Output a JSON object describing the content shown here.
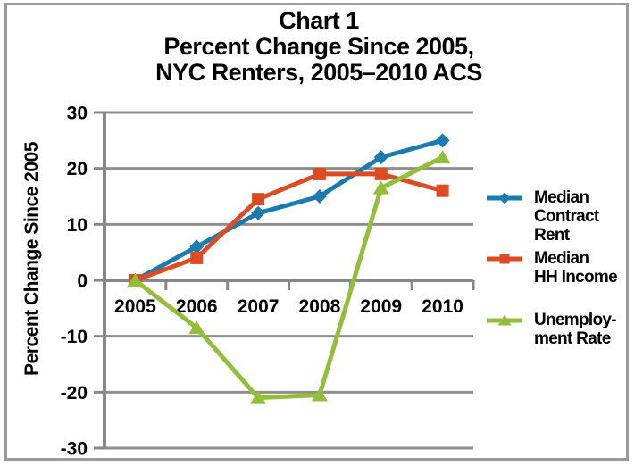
{
  "title": {
    "line1": "Chart 1",
    "line2": "Percent Change Since 2005,",
    "line3": "NYC Renters, 2005–2010 ACS"
  },
  "y_axis_title": "Percent Change Since 2005",
  "colors": {
    "rent_blue": "#1A7CAE",
    "income_red": "#DB4C24",
    "unemployment_green": "#93BE3A",
    "gridline_gray": "#8E8E8E",
    "axis_gray": "#878787",
    "frame_gray": "#999999",
    "text_black": "#000000"
  },
  "chart_data": {
    "type": "line",
    "title": "Chart 1 Percent Change Since 2005, NYC Renters, 2005–2010 ACS",
    "xlabel": "",
    "ylabel": "Percent Change Since 2005",
    "categories": [
      "2005",
      "2006",
      "2007",
      "2008",
      "2009",
      "2010"
    ],
    "y_ticks": [
      30,
      20,
      10,
      0,
      -10,
      -20,
      -30
    ],
    "ylim": [
      -30,
      30
    ],
    "grid": "horizontal",
    "legend_position": "right",
    "series": [
      {
        "name": "Median Contract Rent",
        "legend_lines": [
          "Median",
          "Contract",
          "Rent"
        ],
        "marker": "diamond",
        "color": "#1A7CAE",
        "values": [
          0,
          6,
          12,
          15,
          22,
          25
        ]
      },
      {
        "name": "Median HH Income",
        "legend_lines": [
          "Median",
          "HH Income"
        ],
        "marker": "square",
        "color": "#DB4C24",
        "values": [
          0,
          4,
          14.5,
          19,
          19,
          16
        ]
      },
      {
        "name": "Unemployment Rate",
        "legend_lines": [
          "Unemploy-",
          "ment Rate"
        ],
        "marker": "triangle",
        "color": "#93BE3A",
        "values": [
          0,
          -8.5,
          -21,
          -20.5,
          16.5,
          22
        ]
      }
    ]
  }
}
